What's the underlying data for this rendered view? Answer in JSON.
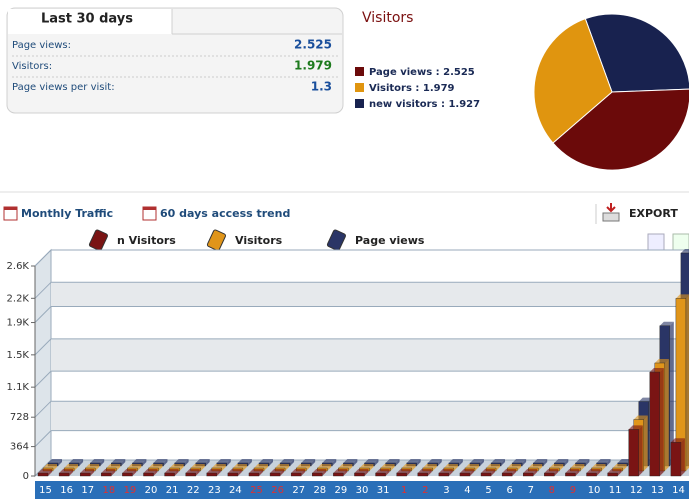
{
  "stats_box": {
    "title": "Last 30 days",
    "rows": [
      {
        "label": "Page views:",
        "value": "2.525",
        "color": "#1a4f9c"
      },
      {
        "label": "Visitors:",
        "value": "1.979",
        "color": "#1d7a1d"
      },
      {
        "label": "Page views per visit:",
        "value": "1.3",
        "color": "#1a4f9c"
      }
    ]
  },
  "pie": {
    "type": "pie",
    "title": "Visitors",
    "slices": [
      {
        "name": "Page views : 2.525",
        "value": 2525,
        "color": "#6b0a0a"
      },
      {
        "name": "Visitors : 1.979",
        "value": 1979,
        "color": "#e0950f"
      },
      {
        "name": "new visitors : 1.927",
        "value": 1927,
        "color": "#18224f"
      }
    ]
  },
  "toolbar": {
    "links": [
      "Monthly Traffic",
      "60 days access trend"
    ],
    "export": "EXPORT"
  },
  "chart_data": {
    "type": "bar",
    "categories": [
      "15",
      "16",
      "17",
      "18",
      "19",
      "20",
      "21",
      "22",
      "23",
      "24",
      "25",
      "26",
      "27",
      "28",
      "29",
      "30",
      "31",
      "1",
      "2",
      "3",
      "4",
      "5",
      "6",
      "7",
      "8",
      "9",
      "10",
      "11",
      "12",
      "13",
      "14"
    ],
    "category_colors": [
      "#fff",
      "#fff",
      "#fff",
      "#e03030",
      "#e03030",
      "#fff",
      "#fff",
      "#fff",
      "#fff",
      "#fff",
      "#e03030",
      "#e03030",
      "#fff",
      "#fff",
      "#fff",
      "#fff",
      "#fff",
      "#e03030",
      "#e03030",
      "#fff",
      "#fff",
      "#fff",
      "#fff",
      "#fff",
      "#e03030",
      "#e03030",
      "#fff",
      "#fff",
      "#fff",
      "#fff",
      "#fff"
    ],
    "series": [
      {
        "name": "n Visitors",
        "color": "#7a1414",
        "values": [
          0,
          0,
          0,
          0,
          0,
          0,
          0,
          0,
          0,
          0,
          0,
          0,
          0,
          0,
          0,
          0,
          0,
          0,
          0,
          0,
          0,
          0,
          0,
          0,
          0,
          0,
          0,
          0,
          540,
          1250,
          380
        ]
      },
      {
        "name": "Visitors",
        "color": "#e0951a",
        "values": [
          0,
          0,
          0,
          0,
          0,
          0,
          0,
          0,
          0,
          0,
          0,
          0,
          0,
          0,
          0,
          0,
          0,
          0,
          0,
          0,
          0,
          0,
          0,
          0,
          0,
          0,
          0,
          0,
          600,
          1300,
          2100
        ]
      },
      {
        "name": "Page views",
        "color": "#2a3566",
        "values": [
          0,
          0,
          0,
          0,
          0,
          0,
          0,
          0,
          0,
          0,
          0,
          0,
          0,
          0,
          0,
          0,
          0,
          0,
          0,
          0,
          0,
          0,
          0,
          0,
          0,
          0,
          0,
          0,
          760,
          1700,
          2600
        ]
      }
    ],
    "ylim": [
      0,
      2600
    ],
    "yticks": [
      0,
      364,
      728,
      {
        "value": 1100,
        "label": "1.1K"
      },
      {
        "value": 1500,
        "label": "1.5K"
      },
      {
        "value": 1900,
        "label": "1.9K"
      },
      {
        "value": 2200,
        "label": "2.2K"
      },
      {
        "value": 2600,
        "label": "2.6K"
      }
    ],
    "grid": true
  }
}
